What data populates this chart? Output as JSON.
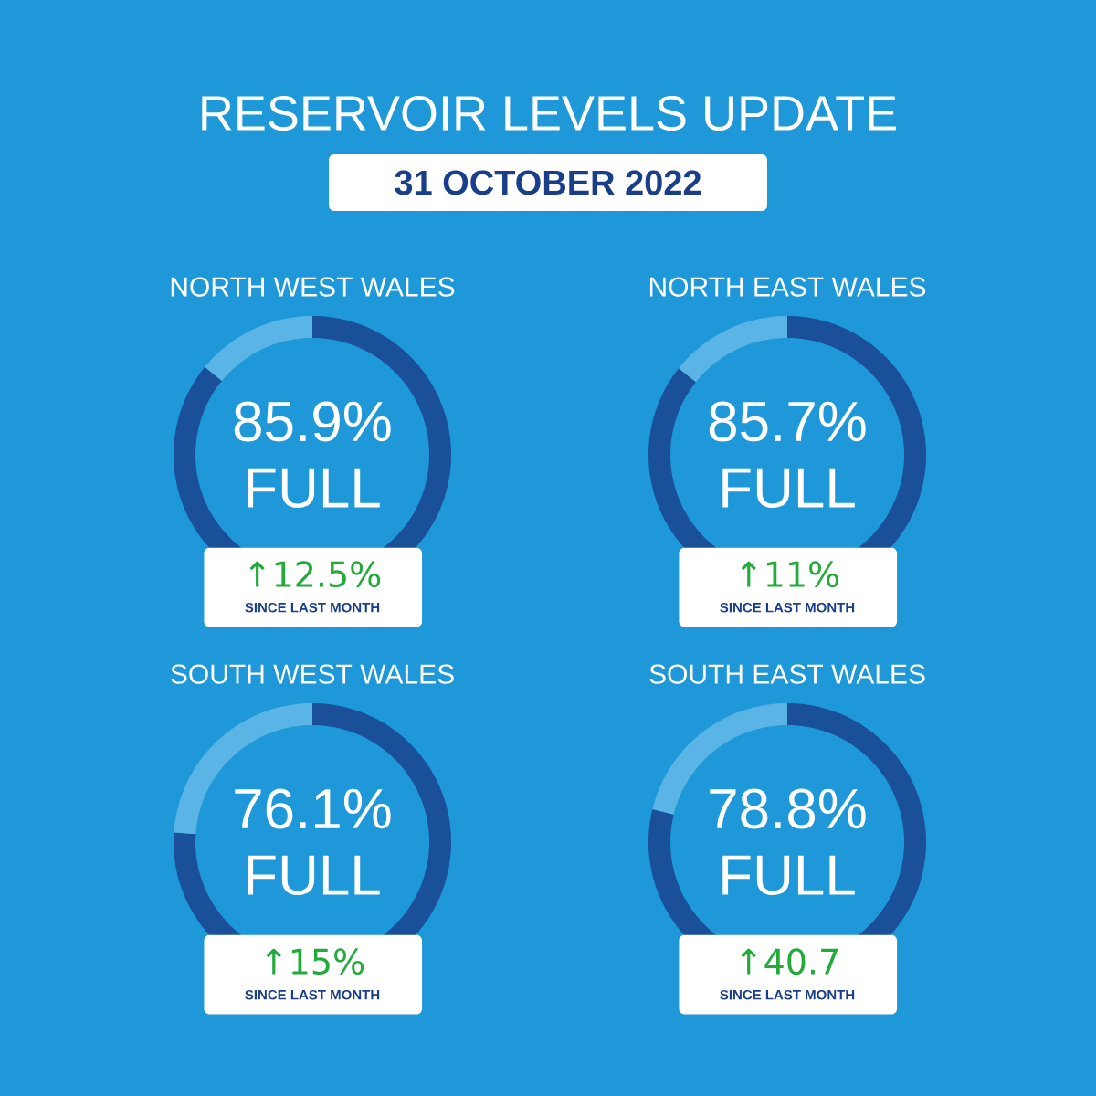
{
  "chart_data": [
    {
      "type": "other",
      "title": "RESERVOIR LEVELS UPDATE",
      "subtitle": "31 OCTOBER 2022"
    },
    {
      "type": "donut",
      "title": "NORTH WEST WALES",
      "categories": [
        null,
        null
      ],
      "values": [
        85.9,
        14.1
      ],
      "colors": [
        "#1a4f9a",
        "#5ab4e5"
      ],
      "value_labels": [
        "85.9%",
        null
      ],
      "annotations": [
        "FULL",
        "↑12.5%",
        "SINCE LAST MONTH"
      ]
    },
    {
      "type": "donut",
      "title": "NORTH EAST WALES",
      "categories": [
        null,
        null
      ],
      "values": [
        85.7,
        14.3
      ],
      "colors": [
        "#1a4f9a",
        "#5ab4e5"
      ],
      "value_labels": [
        "85.7%",
        null
      ],
      "annotations": [
        "FULL",
        "↑11%",
        "SINCE LAST MONTH"
      ]
    },
    {
      "type": "donut",
      "title": "SOUTH WEST WALES",
      "categories": [
        null,
        null
      ],
      "values": [
        76.1,
        23.9
      ],
      "colors": [
        "#1a4f9a",
        "#5ab4e5"
      ],
      "value_labels": [
        "76.1%",
        null
      ],
      "annotations": [
        "FULL",
        "↑15%",
        "SINCE LAST MONTH"
      ]
    },
    {
      "type": "donut",
      "title": "SOUTH EAST WALES",
      "categories": [
        null,
        null
      ],
      "values": [
        78.8,
        21.2
      ],
      "colors": [
        "#1a4f9a",
        "#5ab4e5"
      ],
      "value_labels": [
        "78.8%",
        null
      ],
      "annotations": [
        "FULL",
        "↑40.7",
        "SINCE LAST MONTH"
      ]
    }
  ]
}
